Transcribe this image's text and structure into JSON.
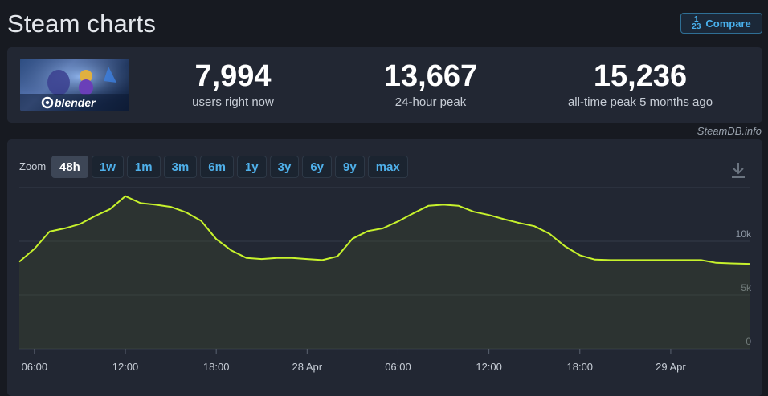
{
  "page": {
    "title": "Steam charts"
  },
  "compare_button": {
    "label": "Compare",
    "icon": "fraction-icon",
    "icon_top": "1",
    "icon_mid": "2",
    "icon_bottom": "3"
  },
  "stats": [
    {
      "value": "7,994",
      "label": "users right now"
    },
    {
      "value": "13,667",
      "label": "24-hour peak"
    },
    {
      "value": "15,236",
      "label": "all-time peak 5 months ago"
    }
  ],
  "app_thumbnail": {
    "logo_text": "blender"
  },
  "watermark": "SteamDB.info",
  "zoom": {
    "label": "Zoom",
    "options": [
      "48h",
      "1w",
      "1m",
      "3m",
      "6m",
      "1y",
      "3y",
      "6y",
      "9y",
      "max"
    ],
    "active": "48h"
  },
  "colors": {
    "line": "#c7f22c",
    "accent": "#4fb0ea",
    "panel": "#222733",
    "background": "#171a21"
  },
  "chart_data": {
    "type": "area",
    "y_ticks": [
      0,
      5000,
      10000
    ],
    "y_tick_labels": [
      "0",
      "5k",
      "10k"
    ],
    "ylim": [
      0,
      15000
    ],
    "x_tick_labels": [
      "06:00",
      "12:00",
      "18:00",
      "28 Apr",
      "06:00",
      "12:00",
      "18:00",
      "29 Apr"
    ],
    "x_tick_hours": [
      6,
      12,
      18,
      24,
      30,
      36,
      42,
      48
    ],
    "xlim_hours": [
      5.0,
      53.2
    ],
    "grid": true,
    "legend": "none",
    "series": [
      {
        "hours": [
          5,
          6,
          7,
          8,
          9,
          10,
          11,
          12,
          13,
          14,
          15,
          16,
          17,
          18,
          19,
          20,
          21,
          22,
          23,
          24,
          25,
          26,
          27,
          28,
          29,
          30,
          31,
          32,
          33,
          34,
          35,
          36,
          37,
          38,
          39,
          40,
          41,
          42,
          43,
          44,
          45,
          46,
          47,
          48,
          49,
          50,
          51,
          52,
          53.2
        ],
        "values": [
          8100,
          9300,
          10900,
          11200,
          11600,
          12350,
          13000,
          14200,
          13550,
          13400,
          13200,
          12700,
          11900,
          10200,
          9150,
          8450,
          8350,
          8450,
          8450,
          8350,
          8250,
          8600,
          10250,
          10950,
          11200,
          11850,
          12600,
          13300,
          13400,
          13300,
          12750,
          12450,
          12050,
          11700,
          11400,
          10700,
          9550,
          8700,
          8300,
          8250,
          8250,
          8250,
          8250,
          8250,
          8250,
          8250,
          8000,
          7950,
          7900
        ]
      }
    ]
  }
}
